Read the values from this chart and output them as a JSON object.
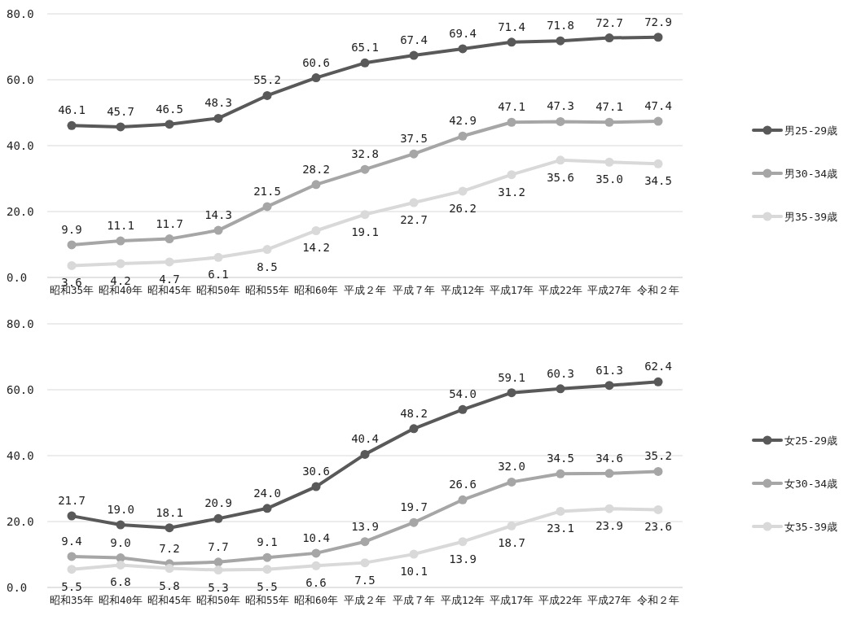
{
  "chart_data": [
    {
      "type": "line",
      "categories": [
        "昭和35年",
        "昭和40年",
        "昭和45年",
        "昭和50年",
        "昭和55年",
        "昭和60年",
        "平成２年",
        "平成７年",
        "平成12年",
        "平成17年",
        "平成22年",
        "平成27年",
        "令和２年"
      ],
      "ylim": [
        0,
        80
      ],
      "yticks": [
        {
          "value": 0,
          "label": "0.0"
        },
        {
          "value": 20,
          "label": "20.0"
        },
        {
          "value": 40,
          "label": "40.0"
        },
        {
          "value": 60,
          "label": "60.0"
        },
        {
          "value": 80,
          "label": "80.0"
        }
      ],
      "grid": "y",
      "legend": "right",
      "marker": "circle",
      "line_style": "solid",
      "series": [
        {
          "name": "男25-29歳",
          "color": "#595959",
          "values": [
            46.1,
            45.7,
            46.5,
            48.3,
            55.2,
            60.6,
            65.1,
            67.4,
            69.4,
            71.4,
            71.8,
            72.7,
            72.9
          ],
          "value_labels": [
            "46.1",
            "45.7",
            "46.5",
            "48.3",
            "55.2",
            "60.6",
            "65.1",
            "67.4",
            "69.4",
            "71.4",
            "71.8",
            "72.7",
            "72.9"
          ]
        },
        {
          "name": "男30-34歳",
          "color": "#a6a6a6",
          "values": [
            9.9,
            11.1,
            11.7,
            14.3,
            21.5,
            28.2,
            32.8,
            37.5,
            42.9,
            47.1,
            47.3,
            47.1,
            47.4
          ],
          "value_labels": [
            "9.9",
            "11.1",
            "11.7",
            "14.3",
            "21.5",
            "28.2",
            "32.8",
            "37.5",
            "42.9",
            "47.1",
            "47.3",
            "47.1",
            "47.4"
          ]
        },
        {
          "name": "男35-39歳",
          "color": "#d9d9d9",
          "values": [
            3.6,
            4.2,
            4.7,
            6.1,
            8.5,
            14.2,
            19.1,
            22.7,
            26.2,
            31.2,
            35.6,
            35.0,
            34.5
          ],
          "value_labels": [
            "3.6",
            "4.2",
            "4.7",
            "6.1",
            "8.5",
            "14.2",
            "19.1",
            "22.7",
            "26.2",
            "31.2",
            "35.6",
            "35.0",
            "34.5"
          ]
        }
      ]
    },
    {
      "type": "line",
      "categories": [
        "昭和35年",
        "昭和40年",
        "昭和45年",
        "昭和50年",
        "昭和55年",
        "昭和60年",
        "平成２年",
        "平成７年",
        "平成12年",
        "平成17年",
        "平成22年",
        "平成27年",
        "令和２年"
      ],
      "ylim": [
        0,
        80
      ],
      "yticks": [
        {
          "value": 0,
          "label": "0.0"
        },
        {
          "value": 20,
          "label": "20.0"
        },
        {
          "value": 40,
          "label": "40.0"
        },
        {
          "value": 60,
          "label": "60.0"
        },
        {
          "value": 80,
          "label": "80.0"
        }
      ],
      "grid": "y",
      "legend": "right",
      "marker": "circle",
      "line_style": "solid",
      "series": [
        {
          "name": "女25-29歳",
          "color": "#595959",
          "values": [
            21.7,
            19.0,
            18.1,
            20.9,
            24.0,
            30.6,
            40.4,
            48.2,
            54.0,
            59.1,
            60.3,
            61.3,
            62.4
          ],
          "value_labels": [
            "21.7",
            "19.0",
            "18.1",
            "20.9",
            "24.0",
            "30.6",
            "40.4",
            "48.2",
            "54.0",
            "59.1",
            "60.3",
            "61.3",
            "62.4"
          ]
        },
        {
          "name": "女30-34歳",
          "color": "#a6a6a6",
          "values": [
            9.4,
            9.0,
            7.2,
            7.7,
            9.1,
            10.4,
            13.9,
            19.7,
            26.6,
            32.0,
            34.5,
            34.6,
            35.2
          ],
          "value_labels": [
            "9.4",
            "9.0",
            "7.2",
            "7.7",
            "9.1",
            "10.4",
            "13.9",
            "19.7",
            "26.6",
            "32.0",
            "34.5",
            "34.6",
            "35.2"
          ]
        },
        {
          "name": "女35-39歳",
          "color": "#d9d9d9",
          "values": [
            5.5,
            6.8,
            5.8,
            5.3,
            5.5,
            6.6,
            7.5,
            10.1,
            13.9,
            18.7,
            23.1,
            23.9,
            23.6
          ],
          "value_labels": [
            "5.5",
            "6.8",
            "5.8",
            "5.3",
            "5.5",
            "6.6",
            "7.5",
            "10.1",
            "13.9",
            "18.7",
            "23.1",
            "23.9",
            "23.6"
          ]
        }
      ]
    }
  ]
}
